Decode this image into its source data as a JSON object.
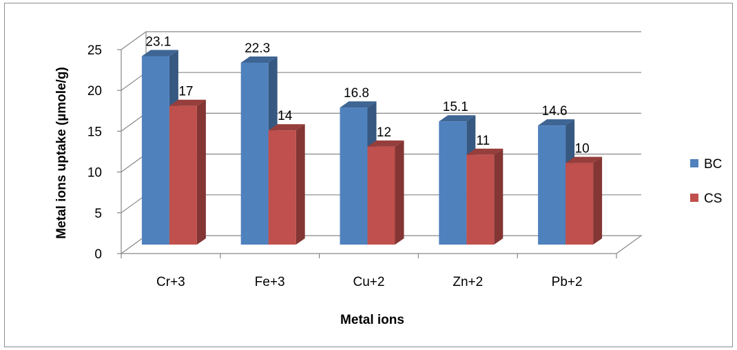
{
  "chart_data": {
    "type": "bar",
    "style": "3d-clustered-column",
    "title": "",
    "xlabel": "Metal ions",
    "ylabel": "Metal ions uptake (µmole/g)",
    "categories": [
      "Cr+3",
      "Fe+3",
      "Cu+2",
      "Zn+2",
      "Pb+2"
    ],
    "series": [
      {
        "name": "BC",
        "values": [
          23.1,
          22.3,
          16.8,
          15.1,
          14.6
        ],
        "value_labels": [
          "23.1",
          "22.3",
          "16.8",
          "15.1",
          "14.6"
        ],
        "color": "#4f81bd"
      },
      {
        "name": "CS",
        "values": [
          17,
          14,
          12,
          11,
          10
        ],
        "value_labels": [
          "17",
          "14",
          "12",
          "11",
          "10"
        ],
        "color": "#c0504d"
      }
    ],
    "ylim": [
      0,
      25
    ],
    "yticks": [
      "0",
      "5",
      "10",
      "15",
      "20",
      "25"
    ],
    "grid": true,
    "legend": "right"
  }
}
